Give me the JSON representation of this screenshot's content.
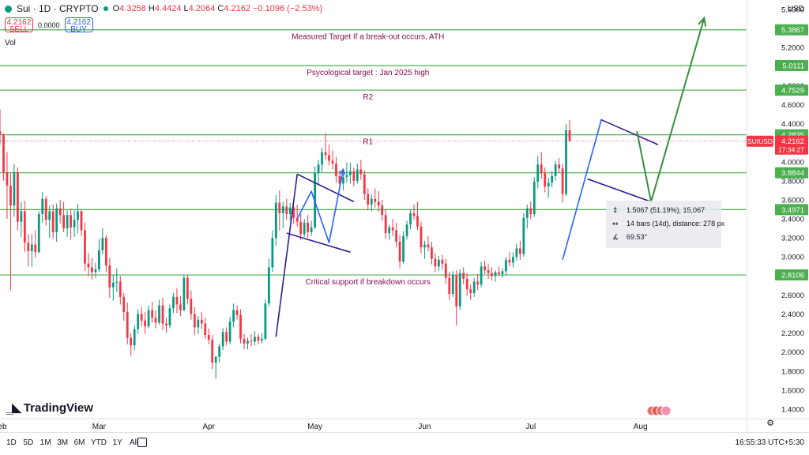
{
  "header": {
    "symbol": "Sui · 1D · CRYPTO",
    "o_key": "O",
    "o_val": "4.3258",
    "h_key": "H",
    "h_val": "4.4424",
    "l_key": "L",
    "l_val": "4.2064",
    "c_key": "C",
    "c_val": "4.2162",
    "change": "−0.1096 (−2.53%)",
    "sell_price": "4.2162",
    "sell_label": "SELL",
    "spread": "0.0000",
    "buy_price": "4.2162",
    "buy_label": "BUY",
    "vol_label": "Vol"
  },
  "axis": {
    "currency": "USD"
  },
  "timeframes": [
    "1D",
    "5D",
    "1M",
    "3M",
    "6M",
    "YTD",
    "1Y",
    "All"
  ],
  "clock": "16:55:33 UTC+5:30",
  "brand": "TradingView",
  "colors": {
    "up": "#089981",
    "down": "#f23645",
    "level": "#4caf50",
    "pattern": "#311b92",
    "blue": "#2962ff",
    "projection": "#388e3c"
  },
  "chart_data": {
    "type": "candlestick",
    "symbol": "SUIUSD",
    "ylim": [
      1.3,
      5.7
    ],
    "yticks": [
      1.4,
      1.6,
      1.8,
      2.0,
      2.2,
      2.4,
      2.6,
      2.8,
      3.0,
      3.2,
      3.4,
      3.6,
      3.8,
      4.0,
      4.2,
      4.4,
      4.6,
      4.8,
      5.0,
      5.2,
      5.4,
      5.6
    ],
    "xlabels": [
      {
        "label": "Feb",
        "day": 0
      },
      {
        "label": "Mar",
        "day": 28
      },
      {
        "label": "Apr",
        "day": 59
      },
      {
        "label": "May",
        "day": 89
      },
      {
        "label": "Jun",
        "day": 120
      },
      {
        "label": "Jul",
        "day": 150
      },
      {
        "label": "Aug",
        "day": 181
      }
    ],
    "x_days_range": [
      0,
      211
    ],
    "last_price": {
      "symbol_tag": "SUIUSD",
      "price": 4.2162,
      "label": "4.2162",
      "countdown": "17:34:27"
    },
    "levels": [
      {
        "price": 5.3867,
        "label": "5.3867",
        "annotation": "Measured Target If a break-out occurs, ATH"
      },
      {
        "price": 5.0111,
        "label": "5.0111",
        "annotation": "Psycological target : Jan 2025 high"
      },
      {
        "price": 4.7529,
        "label": "4.7529",
        "annotation": "R2"
      },
      {
        "price": 4.2835,
        "label": "4.2835",
        "annotation": "R1"
      },
      {
        "price": 3.8844,
        "label": "3.8844",
        "annotation": ""
      },
      {
        "price": 3.4971,
        "label": "3.4971",
        "annotation": ""
      },
      {
        "price": 2.8106,
        "label": "2.8106",
        "annotation": "Critical support if breakdown occurs"
      }
    ],
    "annotation_days": {
      "5.3867": 104,
      "5.0111": 104,
      "4.7529": 104,
      "4.2835": 104,
      "2.8106": 104
    },
    "measure_tooltip": {
      "line1": "1.5067 (51.19%), 15,067",
      "line2": "14 bars (14d), distance: 278 px",
      "line3": "69.53°"
    },
    "drawings": [
      {
        "kind": "line",
        "color": "pattern",
        "pts": [
          [
            78,
            2.16
          ],
          [
            84,
            3.87
          ]
        ]
      },
      {
        "kind": "line",
        "color": "pattern",
        "pts": [
          [
            84,
            3.87
          ],
          [
            100,
            3.58
          ]
        ]
      },
      {
        "kind": "line",
        "color": "pattern",
        "pts": [
          [
            81,
            3.25
          ],
          [
            99,
            3.05
          ]
        ]
      },
      {
        "kind": "line",
        "color": "blue",
        "pts": [
          [
            84,
            3.4
          ],
          [
            88,
            3.69
          ],
          [
            93,
            3.15
          ],
          [
            97,
            3.92
          ]
        ]
      },
      {
        "kind": "line",
        "color": "blue",
        "pts": [
          [
            159,
            2.97
          ],
          [
            170,
            4.45
          ]
        ]
      },
      {
        "kind": "line",
        "color": "pattern",
        "pts": [
          [
            170,
            4.44
          ],
          [
            186,
            4.18
          ]
        ]
      },
      {
        "kind": "line",
        "color": "pattern",
        "pts": [
          [
            166,
            3.82
          ],
          [
            184,
            3.58
          ]
        ]
      },
      {
        "kind": "line",
        "color": "projection",
        "pts": [
          [
            180,
            4.32
          ],
          [
            184,
            3.58
          ],
          [
            199,
            5.51
          ]
        ]
      }
    ],
    "candles": [
      [
        0,
        4.32,
        4.55,
        4.18,
        4.28
      ],
      [
        1,
        4.28,
        4.3,
        3.8,
        3.89
      ],
      [
        2,
        3.89,
        4.1,
        3.4,
        3.75
      ],
      [
        3,
        3.75,
        3.88,
        2.65,
        3.54
      ],
      [
        4,
        3.54,
        3.98,
        3.42,
        3.89
      ],
      [
        5,
        3.89,
        3.94,
        3.28,
        3.37
      ],
      [
        6,
        3.37,
        3.58,
        3.21,
        3.48
      ],
      [
        7,
        3.48,
        3.59,
        3.05,
        3.15
      ],
      [
        8,
        3.15,
        3.24,
        2.9,
        3.06
      ],
      [
        9,
        3.06,
        3.24,
        2.9,
        3.13
      ],
      [
        10,
        3.13,
        3.28,
        2.99,
        3.05
      ],
      [
        11,
        3.05,
        3.48,
        3.04,
        3.45
      ],
      [
        12,
        3.45,
        3.68,
        3.36,
        3.61
      ],
      [
        13,
        3.61,
        3.64,
        3.33,
        3.39
      ],
      [
        14,
        3.39,
        3.54,
        3.2,
        3.48
      ],
      [
        15,
        3.48,
        3.55,
        3.19,
        3.26
      ],
      [
        16,
        3.26,
        3.56,
        3.16,
        3.51
      ],
      [
        17,
        3.51,
        3.6,
        3.35,
        3.44
      ],
      [
        18,
        3.44,
        3.58,
        3.26,
        3.3
      ],
      [
        19,
        3.3,
        3.49,
        3.21,
        3.44
      ],
      [
        20,
        3.44,
        3.51,
        3.18,
        3.31
      ],
      [
        21,
        3.31,
        3.49,
        3.21,
        3.39
      ],
      [
        22,
        3.39,
        3.56,
        3.25,
        3.48
      ],
      [
        23,
        3.48,
        3.49,
        3.22,
        3.28
      ],
      [
        24,
        3.28,
        3.36,
        2.85,
        2.93
      ],
      [
        25,
        2.93,
        3.04,
        2.8,
        2.89
      ],
      [
        26,
        2.89,
        2.99,
        2.76,
        2.84
      ],
      [
        27,
        2.84,
        2.94,
        2.78,
        2.87
      ],
      [
        28,
        2.87,
        3.19,
        2.84,
        3.07
      ],
      [
        29,
        3.07,
        3.3,
        3.03,
        3.2
      ],
      [
        30,
        3.2,
        3.23,
        2.84,
        2.91
      ],
      [
        31,
        2.91,
        2.99,
        2.57,
        2.68
      ],
      [
        32,
        2.68,
        2.81,
        2.54,
        2.73
      ],
      [
        33,
        2.73,
        2.88,
        2.63,
        2.74
      ],
      [
        34,
        2.74,
        2.8,
        2.5,
        2.58
      ],
      [
        35,
        2.58,
        2.62,
        2.33,
        2.42
      ],
      [
        36,
        2.42,
        2.52,
        2.08,
        2.15
      ],
      [
        37,
        2.15,
        2.2,
        1.96,
        2.07
      ],
      [
        38,
        2.07,
        2.28,
        2.02,
        2.24
      ],
      [
        39,
        2.24,
        2.45,
        2.19,
        2.4
      ],
      [
        40,
        2.4,
        2.47,
        2.27,
        2.33
      ],
      [
        41,
        2.33,
        2.42,
        2.19,
        2.27
      ],
      [
        42,
        2.27,
        2.49,
        2.25,
        2.44
      ],
      [
        43,
        2.44,
        2.53,
        2.31,
        2.36
      ],
      [
        44,
        2.36,
        2.44,
        2.25,
        2.31
      ],
      [
        45,
        2.31,
        2.55,
        2.29,
        2.49
      ],
      [
        46,
        2.49,
        2.57,
        2.23,
        2.3
      ],
      [
        47,
        2.3,
        2.36,
        2.2,
        2.28
      ],
      [
        48,
        2.28,
        2.5,
        2.25,
        2.46
      ],
      [
        49,
        2.46,
        2.62,
        2.41,
        2.58
      ],
      [
        50,
        2.58,
        2.67,
        2.41,
        2.5
      ],
      [
        51,
        2.5,
        2.59,
        2.38,
        2.44
      ],
      [
        52,
        2.44,
        2.81,
        2.43,
        2.78
      ],
      [
        53,
        2.78,
        2.81,
        2.5,
        2.56
      ],
      [
        54,
        2.56,
        2.65,
        2.34,
        2.4
      ],
      [
        55,
        2.4,
        2.47,
        2.18,
        2.26
      ],
      [
        56,
        2.26,
        2.38,
        2.19,
        2.34
      ],
      [
        57,
        2.34,
        2.42,
        2.24,
        2.3
      ],
      [
        58,
        2.3,
        2.36,
        2.14,
        2.18
      ],
      [
        59,
        2.18,
        2.25,
        2.08,
        2.13
      ],
      [
        60,
        2.13,
        2.18,
        1.82,
        1.89
      ],
      [
        61,
        1.89,
        1.96,
        1.72,
        1.95
      ],
      [
        62,
        1.95,
        2.09,
        1.89,
        2.06
      ],
      [
        63,
        2.06,
        2.25,
        2.02,
        2.21
      ],
      [
        64,
        2.21,
        2.26,
        2.07,
        2.11
      ],
      [
        65,
        2.11,
        2.37,
        2.08,
        2.32
      ],
      [
        66,
        2.32,
        2.51,
        2.26,
        2.44
      ],
      [
        67,
        2.44,
        2.49,
        2.34,
        2.39
      ],
      [
        68,
        2.39,
        2.45,
        2.09,
        2.14
      ],
      [
        69,
        2.14,
        2.19,
        2.03,
        2.09
      ],
      [
        70,
        2.09,
        2.15,
        2.03,
        2.12
      ],
      [
        71,
        2.12,
        2.19,
        2.06,
        2.11
      ],
      [
        72,
        2.11,
        2.22,
        2.07,
        2.16
      ],
      [
        73,
        2.16,
        2.19,
        2.08,
        2.12
      ],
      [
        74,
        2.12,
        2.2,
        2.09,
        2.14
      ],
      [
        75,
        2.14,
        2.55,
        2.12,
        2.51
      ],
      [
        76,
        2.51,
        2.98,
        2.48,
        2.89
      ],
      [
        77,
        2.89,
        3.28,
        2.84,
        3.2
      ],
      [
        78,
        3.2,
        3.65,
        3.12,
        3.57
      ],
      [
        79,
        3.57,
        3.7,
        3.28,
        3.46
      ],
      [
        80,
        3.46,
        3.58,
        3.3,
        3.53
      ],
      [
        81,
        3.53,
        3.61,
        3.39,
        3.45
      ],
      [
        82,
        3.45,
        3.57,
        3.38,
        3.52
      ],
      [
        83,
        3.52,
        3.54,
        3.35,
        3.41
      ],
      [
        84,
        3.41,
        3.55,
        3.32,
        3.37
      ],
      [
        85,
        3.37,
        3.45,
        3.18,
        3.24
      ],
      [
        86,
        3.24,
        3.4,
        3.21,
        3.36
      ],
      [
        87,
        3.36,
        3.44,
        3.2,
        3.26
      ],
      [
        88,
        3.26,
        3.38,
        3.22,
        3.31
      ],
      [
        89,
        3.31,
        3.95,
        3.29,
        3.88
      ],
      [
        90,
        3.88,
        4.02,
        3.76,
        3.97
      ],
      [
        91,
        3.97,
        4.15,
        3.89,
        4.1
      ],
      [
        92,
        4.1,
        4.3,
        4.02,
        4.07
      ],
      [
        93,
        4.07,
        4.18,
        3.96,
        4.01
      ],
      [
        94,
        4.01,
        4.12,
        3.92,
        3.98
      ],
      [
        95,
        3.98,
        4.05,
        3.78,
        3.85
      ],
      [
        96,
        3.85,
        3.91,
        3.7,
        3.77
      ],
      [
        97,
        3.77,
        3.88,
        3.7,
        3.84
      ],
      [
        98,
        3.84,
        3.99,
        3.78,
        3.86
      ],
      [
        99,
        3.86,
        3.99,
        3.77,
        3.9
      ],
      [
        100,
        3.9,
        3.94,
        3.74,
        3.8
      ],
      [
        101,
        3.8,
        3.98,
        3.77,
        3.92
      ],
      [
        102,
        3.92,
        4.02,
        3.81,
        3.87
      ],
      [
        103,
        3.87,
        3.91,
        3.6,
        3.66
      ],
      [
        104,
        3.66,
        3.72,
        3.49,
        3.55
      ],
      [
        105,
        3.55,
        3.66,
        3.48,
        3.61
      ],
      [
        106,
        3.61,
        3.72,
        3.52,
        3.58
      ],
      [
        107,
        3.58,
        3.69,
        3.48,
        3.54
      ],
      [
        108,
        3.54,
        3.6,
        3.38,
        3.44
      ],
      [
        109,
        3.44,
        3.5,
        3.19,
        3.25
      ],
      [
        110,
        3.25,
        3.34,
        3.18,
        3.31
      ],
      [
        111,
        3.31,
        3.4,
        3.22,
        3.28
      ],
      [
        112,
        3.28,
        3.36,
        3.1,
        3.16
      ],
      [
        113,
        3.16,
        3.23,
        2.88,
        2.95
      ],
      [
        114,
        2.95,
        3.27,
        2.93,
        3.22
      ],
      [
        115,
        3.22,
        3.38,
        3.18,
        3.34
      ],
      [
        116,
        3.34,
        3.5,
        3.29,
        3.46
      ],
      [
        117,
        3.46,
        3.55,
        3.39,
        3.43
      ],
      [
        118,
        3.43,
        3.58,
        3.28,
        3.32
      ],
      [
        119,
        3.32,
        3.37,
        3.04,
        3.1
      ],
      [
        120,
        3.1,
        3.17,
        2.98,
        3.13
      ],
      [
        121,
        3.13,
        3.22,
        3.06,
        3.1
      ],
      [
        122,
        3.1,
        3.16,
        2.92,
        2.98
      ],
      [
        123,
        2.98,
        3.04,
        2.84,
        2.9
      ],
      [
        124,
        2.9,
        3.01,
        2.85,
        2.97
      ],
      [
        125,
        2.97,
        3.02,
        2.87,
        2.93
      ],
      [
        126,
        2.93,
        2.98,
        2.72,
        2.78
      ],
      [
        127,
        2.78,
        2.84,
        2.55,
        2.61
      ],
      [
        128,
        2.61,
        2.85,
        2.58,
        2.81
      ],
      [
        129,
        2.81,
        2.86,
        2.28,
        2.48
      ],
      [
        130,
        2.48,
        2.87,
        2.44,
        2.83
      ],
      [
        131,
        2.83,
        2.89,
        2.71,
        2.77
      ],
      [
        132,
        2.77,
        2.83,
        2.59,
        2.66
      ],
      [
        133,
        2.66,
        2.71,
        2.55,
        2.62
      ],
      [
        134,
        2.62,
        2.78,
        2.58,
        2.74
      ],
      [
        135,
        2.74,
        2.82,
        2.65,
        2.71
      ],
      [
        136,
        2.71,
        2.95,
        2.68,
        2.9
      ],
      [
        137,
        2.9,
        2.96,
        2.82,
        2.86
      ],
      [
        138,
        2.86,
        2.93,
        2.77,
        2.83
      ],
      [
        139,
        2.83,
        2.89,
        2.75,
        2.8
      ],
      [
        140,
        2.8,
        2.86,
        2.74,
        2.84
      ],
      [
        141,
        2.84,
        2.9,
        2.8,
        2.82
      ],
      [
        142,
        2.82,
        2.88,
        2.78,
        2.85
      ],
      [
        143,
        2.85,
        3.0,
        2.81,
        2.97
      ],
      [
        144,
        2.97,
        3.05,
        2.9,
        2.94
      ],
      [
        145,
        2.94,
        3.05,
        2.89,
        3.0
      ],
      [
        146,
        3.0,
        3.14,
        2.96,
        3.09
      ],
      [
        147,
        3.09,
        3.17,
        2.97,
        3.03
      ],
      [
        148,
        3.03,
        3.46,
        3.0,
        3.41
      ],
      [
        149,
        3.41,
        3.55,
        3.3,
        3.51
      ],
      [
        150,
        3.51,
        3.58,
        3.4,
        3.45
      ],
      [
        151,
        3.45,
        3.84,
        3.42,
        3.79
      ],
      [
        152,
        3.79,
        4.06,
        3.72,
        3.97
      ],
      [
        153,
        3.97,
        4.1,
        3.82,
        3.88
      ],
      [
        154,
        3.88,
        3.94,
        3.68,
        3.74
      ],
      [
        155,
        3.74,
        3.83,
        3.62,
        3.78
      ],
      [
        156,
        3.78,
        3.9,
        3.73,
        3.85
      ],
      [
        157,
        3.85,
        4.01,
        3.8,
        3.97
      ],
      [
        158,
        3.97,
        4.04,
        3.88,
        3.93
      ],
      [
        159,
        3.93,
        3.98,
        3.57,
        3.66
      ],
      [
        160,
        3.66,
        4.4,
        3.64,
        4.33
      ],
      [
        161,
        4.33,
        4.44,
        4.21,
        4.22
      ]
    ]
  }
}
